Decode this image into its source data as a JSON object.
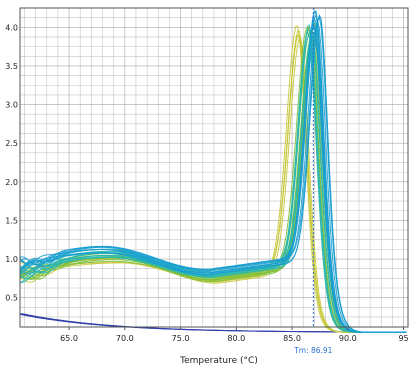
{
  "chart_data": {
    "type": "line",
    "title": "",
    "xlabel": "Temperature (°C)",
    "ylabel": "",
    "xlim": [
      60.6,
      95.4
    ],
    "ylim": [
      0.12,
      4.25
    ],
    "x_ticks": [
      65.0,
      70.0,
      75.0,
      80.0,
      85.0,
      90.0,
      95
    ],
    "x_tick_labels": [
      "65.0",
      "70.0",
      "75.0",
      "80.0",
      "85.0",
      "90.0",
      "95"
    ],
    "y_ticks": [
      0.5,
      1.0,
      1.5,
      2.0,
      2.5,
      3.0,
      3.5,
      4.0
    ],
    "y_tick_labels": [
      "0.5",
      "1.0",
      "1.5",
      "2.0",
      "2.5",
      "3.0",
      "3.5",
      "4.0"
    ],
    "grid": true,
    "legend": "none",
    "colors": {
      "blue_group": "#1a9fd0",
      "teal_group": "#2bb8b0",
      "green_group": "#7cbf3a",
      "yellow_group": "#c8c83a",
      "baseline": "#3040a8",
      "tm_marker": "#2a6fd0",
      "grid": "#c4c4c4"
    },
    "tm_marker": {
      "x": 86.91,
      "label": "Tm: 86.91"
    },
    "series_groups": [
      {
        "group": "blue_group",
        "count": 10,
        "shape": "melt_peak",
        "peak_x": 87.1,
        "peak_y": 4.12,
        "peak_width": 1.2,
        "baseline": 0.9,
        "hump_y": 1.13,
        "hump_x": 68.0,
        "dip_y": 0.83,
        "dip_x": 77.5,
        "tail_y": 0.05
      },
      {
        "group": "teal_group",
        "count": 10,
        "shape": "melt_peak",
        "peak_x": 86.8,
        "peak_y": 3.98,
        "peak_width": 1.25,
        "baseline": 0.85,
        "hump_y": 1.08,
        "hump_x": 68.5,
        "dip_y": 0.8,
        "dip_x": 77.8,
        "tail_y": 0.05
      },
      {
        "group": "green_group",
        "count": 8,
        "shape": "melt_peak",
        "peak_x": 86.6,
        "peak_y": 3.95,
        "peak_width": 1.35,
        "baseline": 0.82,
        "hump_y": 1.02,
        "hump_x": 69.0,
        "dip_y": 0.74,
        "dip_x": 78.0,
        "tail_y": 0.05
      },
      {
        "group": "yellow_group",
        "count": 5,
        "shape": "melt_peak",
        "peak_x": 85.8,
        "peak_y": 3.92,
        "peak_width": 1.3,
        "baseline": 0.8,
        "hump_y": 1.0,
        "hump_x": 69.5,
        "dip_y": 0.72,
        "dip_x": 78.3,
        "tail_y": 0.05
      },
      {
        "group": "baseline",
        "count": 3,
        "shape": "decay",
        "start_y": 0.27,
        "end_y": 0.05
      }
    ]
  }
}
